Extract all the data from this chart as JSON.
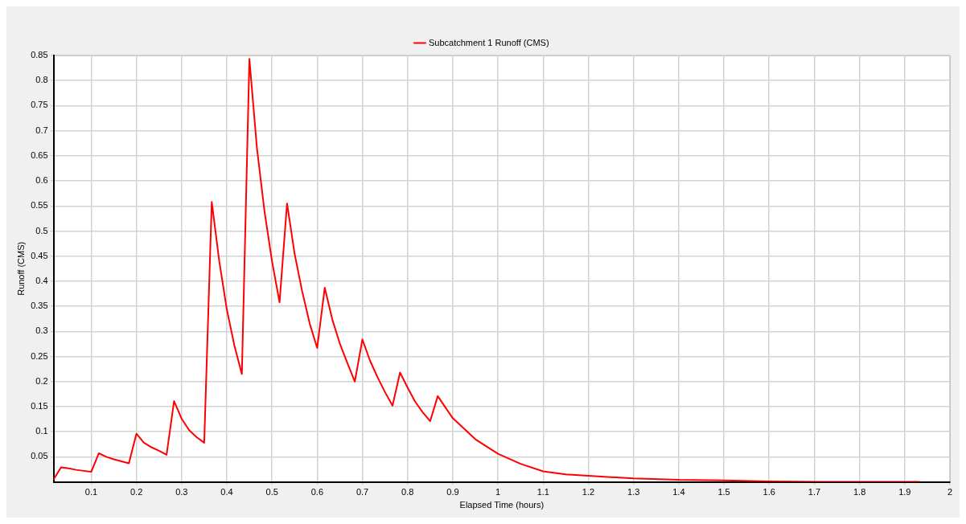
{
  "chart_data": {
    "type": "line",
    "xlabel": "Elapsed Time (hours)",
    "ylabel": "Runoff (CMS)",
    "x": [
      0.0167,
      0.0333,
      0.05,
      0.0667,
      0.0833,
      0.1,
      0.1167,
      0.1333,
      0.15,
      0.1667,
      0.1833,
      0.2,
      0.2167,
      0.2333,
      0.25,
      0.2667,
      0.2833,
      0.3,
      0.3167,
      0.3333,
      0.35,
      0.3667,
      0.3833,
      0.4,
      0.4167,
      0.4333,
      0.45,
      0.4667,
      0.4833,
      0.5,
      0.5167,
      0.5333,
      0.55,
      0.5667,
      0.5833,
      0.6,
      0.6167,
      0.6333,
      0.65,
      0.6667,
      0.6833,
      0.7,
      0.7167,
      0.7333,
      0.75,
      0.7667,
      0.7833,
      0.8,
      0.8167,
      0.8333,
      0.85,
      0.8667,
      0.8833,
      0.9,
      0.95,
      1.0,
      1.05,
      1.1,
      1.15,
      1.2,
      1.3,
      1.4,
      1.5,
      1.6,
      1.75,
      1.933
    ],
    "series": [
      {
        "name": "Subcatchment 1 Runoff (CMS)",
        "color": "#ff0000",
        "values": [
          0.005,
          0.029,
          0.027,
          0.024,
          0.022,
          0.02,
          0.057,
          0.05,
          0.045,
          0.041,
          0.037,
          0.096,
          0.078,
          0.069,
          0.062,
          0.054,
          0.161,
          0.126,
          0.103,
          0.089,
          0.078,
          0.558,
          0.44,
          0.344,
          0.272,
          0.215,
          0.843,
          0.665,
          0.54,
          0.44,
          0.358,
          0.555,
          0.455,
          0.38,
          0.316,
          0.267,
          0.387,
          0.324,
          0.276,
          0.237,
          0.2,
          0.284,
          0.242,
          0.209,
          0.179,
          0.152,
          0.218,
          0.188,
          0.16,
          0.139,
          0.121,
          0.171,
          0.149,
          0.127,
          0.085,
          0.056,
          0.036,
          0.021,
          0.015,
          0.012,
          0.007,
          0.004,
          0.003,
          0.001,
          0,
          0
        ]
      }
    ],
    "xlim": [
      0.0167,
      2
    ],
    "xticks": [
      0.1,
      0.2,
      0.3,
      0.4,
      0.5,
      0.6,
      0.7,
      0.8,
      0.9,
      1,
      1.1,
      1.2,
      1.3,
      1.4,
      1.5,
      1.6,
      1.7,
      1.8,
      1.9,
      2
    ],
    "ylim": [
      0,
      0.85
    ],
    "yticks": [
      0.05,
      0.1,
      0.15,
      0.2,
      0.25,
      0.3,
      0.35,
      0.4,
      0.45,
      0.5,
      0.55,
      0.6,
      0.65,
      0.7,
      0.75,
      0.8,
      0.85
    ],
    "grid": true,
    "legend": "top",
    "marker": "none",
    "line_style": "solid"
  }
}
